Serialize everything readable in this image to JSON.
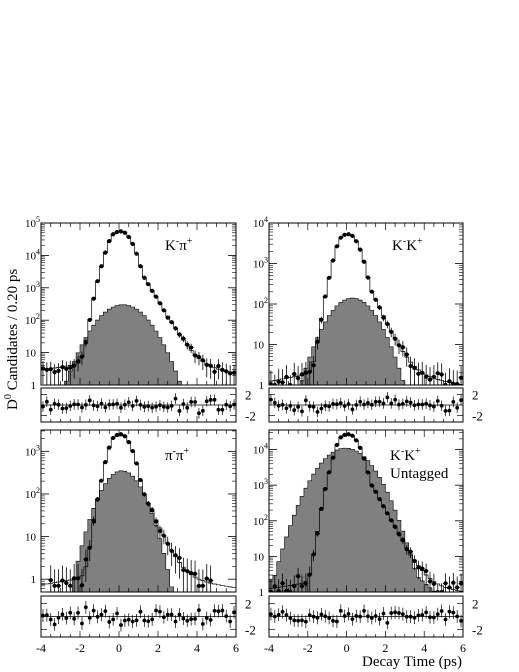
{
  "figure": {
    "ylabel": "D",
    "ylabel_sup": "0",
    "ylabel_rest": " Candidates / 0.20 ps",
    "xlabel": "Decay Time (ps)"
  },
  "chart_data": [
    {
      "type": "histogram",
      "id": "kpi",
      "label_main": "K",
      "label_sup1": "-",
      "label_mid": "π",
      "label_sup2": "+",
      "label_line2": "",
      "xlim": [
        -4,
        6
      ],
      "ylog": true,
      "ylim_log10": [
        0,
        5
      ],
      "yticks": [
        "1",
        "10",
        "10",
        "10",
        "10",
        "10"
      ],
      "yticks_sup": [
        "",
        "",
        "2",
        "3",
        "4",
        "5"
      ],
      "xticks": [
        "-4",
        "-2",
        "0",
        "2",
        "4",
        "6"
      ],
      "pull_ticks": [
        "2",
        "-2"
      ],
      "bin_width": 0.2,
      "bg_peak": 300,
      "bg_sigma": 0.88,
      "bg_center": 0.2,
      "total_peak": 55000,
      "total_tau": 0.41,
      "total_sigma": 0.2,
      "tail_level": 8
    },
    {
      "type": "histogram",
      "id": "kk",
      "label_main": "K",
      "label_sup1": "-",
      "label_mid": "K",
      "label_sup2": "+",
      "label_line2": "",
      "xlim": [
        -4,
        6
      ],
      "ylog": true,
      "ylim_log10": [
        0,
        4
      ],
      "yticks": [
        "1",
        "10",
        "10",
        "10",
        "10"
      ],
      "yticks_sup": [
        "",
        "",
        "2",
        "3",
        "4"
      ],
      "xticks": [
        "-4",
        "-2",
        "0",
        "2",
        "4",
        "6"
      ],
      "pull_ticks": [
        "2",
        "-2"
      ],
      "bin_width": 0.2,
      "bg_peak": 140,
      "bg_sigma": 0.85,
      "bg_center": 0.3,
      "total_peak": 5300,
      "total_tau": 0.41,
      "total_sigma": 0.2,
      "tail_level": 3
    },
    {
      "type": "histogram",
      "id": "pipi",
      "label_main": "π",
      "label_sup1": "-",
      "label_mid": "π",
      "label_sup2": "+",
      "label_line2": "",
      "xlim": [
        -4,
        6
      ],
      "ylog": true,
      "ylim_log10": [
        -0.3,
        3.5
      ],
      "yticks": [
        "1",
        "10",
        "10",
        "10"
      ],
      "yticks_sup": [
        "",
        "",
        "2",
        "3"
      ],
      "xticks": [
        "-4",
        "-2",
        "0",
        "2",
        "4",
        "6"
      ],
      "pull_ticks": [
        "2",
        "-2"
      ],
      "bin_width": 0.2,
      "bg_peak": 350,
      "bg_sigma": 0.72,
      "bg_center": 0.15,
      "total_peak": 2500,
      "total_tau": 0.41,
      "total_sigma": 0.2,
      "tail_level": 1.5
    },
    {
      "type": "histogram",
      "id": "kk_untagged",
      "label_main": "K",
      "label_sup1": "-",
      "label_mid": "K",
      "label_sup2": "+",
      "label_line2": "Untagged",
      "xlim": [
        -4,
        6
      ],
      "ylog": true,
      "ylim_log10": [
        0,
        4.55
      ],
      "yticks": [
        "1",
        "10",
        "10",
        "10",
        "10"
      ],
      "yticks_sup": [
        "",
        "",
        "2",
        "3",
        "4"
      ],
      "xticks": [
        "-4",
        "-2",
        "0",
        "2",
        "4",
        "6"
      ],
      "pull_ticks": [
        "2",
        "-2"
      ],
      "bin_width": 0.2,
      "bg_peak": 11000,
      "bg_sigma": 0.9,
      "bg_center": -0.05,
      "total_peak": 27000,
      "total_tau": 0.41,
      "total_sigma": 0.2,
      "tail_level": 3
    }
  ]
}
